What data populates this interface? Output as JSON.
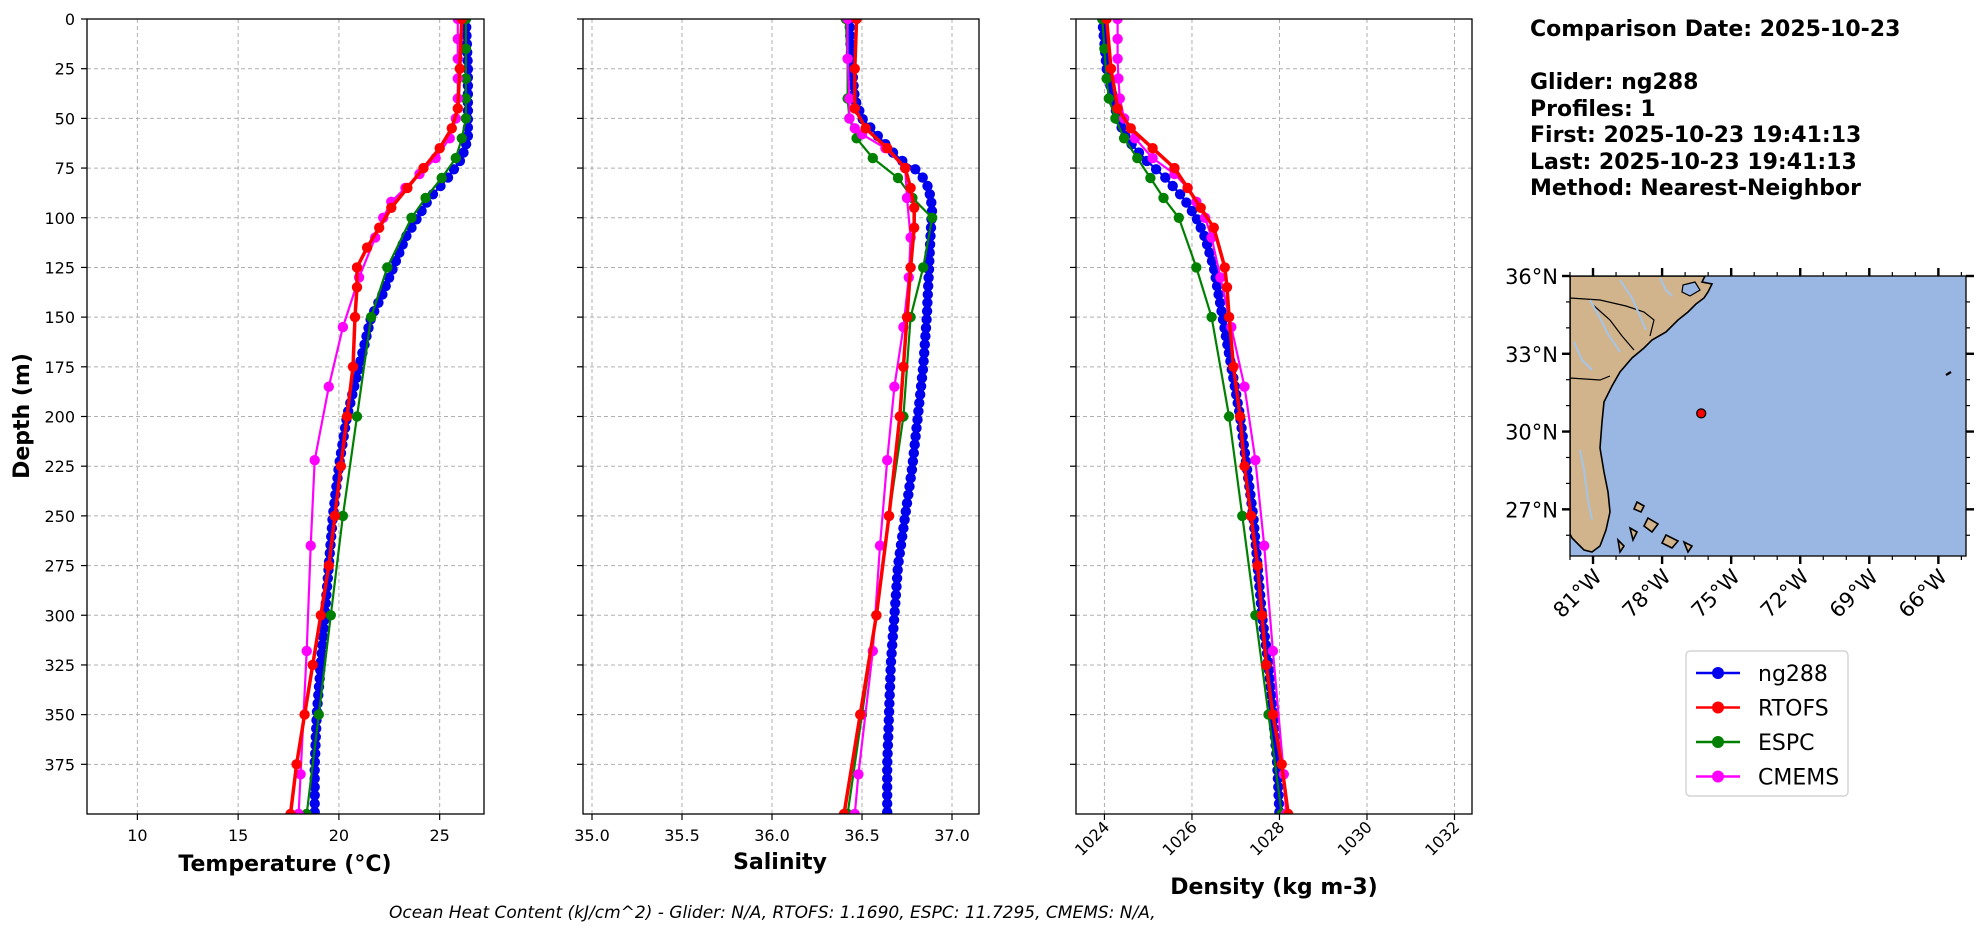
{
  "info": {
    "lines": [
      "Comparison Date: 2025-10-23",
      "",
      "Glider: ng288",
      "Profiles: 1",
      "First: 2025-10-23 19:41:13",
      "Last: 2025-10-23 19:41:13",
      "Method: Nearest-Neighbor"
    ]
  },
  "footer": {
    "text": "Ocean Heat Content (kJ/cm^2) - Glider: N/A,  RTOFS: 1.1690,  ESPC: 11.7295,  CMEMS: N/A,"
  },
  "colors": {
    "ng288": "#0000ee",
    "RTOFS": "#ff0000",
    "ESPC": "#008000",
    "CMEMS": "#ff00ff",
    "land": "#d2b48c",
    "ocean": "#9ab7e3",
    "river": "#a6c4e6"
  },
  "legend": {
    "entries": [
      "ng288",
      "RTOFS",
      "ESPC",
      "CMEMS"
    ]
  },
  "map": {
    "lat_ticks": [
      "36°N",
      "33°N",
      "30°N",
      "27°N"
    ],
    "lon_ticks": [
      "81°W",
      "78°W",
      "75°W",
      "72°W",
      "69°W",
      "66°W"
    ],
    "lat_range": [
      25.2,
      36.0
    ],
    "lon_range": [
      -82.0,
      -64.8
    ],
    "marker": {
      "lon": -76.3,
      "lat": 30.7
    }
  },
  "chart_data": [
    {
      "type": "line",
      "xlabel": "Temperature (°C)",
      "ylabel": "Depth (m)",
      "xlim": [
        7.5,
        27.2
      ],
      "ylim": [
        400,
        0
      ],
      "xticks": [
        10,
        15,
        20,
        25
      ],
      "yticks": [
        0,
        25,
        50,
        75,
        100,
        125,
        150,
        175,
        200,
        225,
        250,
        275,
        300,
        325,
        350,
        375
      ],
      "grid": true,
      "series": [
        {
          "name": "ng288",
          "depth": [
            0,
            25,
            50,
            60,
            70,
            80,
            90,
            100,
            110,
            125,
            140,
            150,
            175,
            200,
            225,
            250,
            275,
            300,
            325,
            350,
            375,
            400
          ],
          "values": [
            26.3,
            26.4,
            26.4,
            26.4,
            26.1,
            25.4,
            24.5,
            23.9,
            23.3,
            22.7,
            22.1,
            21.6,
            21.0,
            20.4,
            20.0,
            19.7,
            19.5,
            19.3,
            19.1,
            18.9,
            18.8,
            18.8
          ]
        },
        {
          "name": "RTOFS",
          "depth": [
            0,
            25,
            45,
            55,
            65,
            75,
            85,
            95,
            105,
            115,
            125,
            135,
            150,
            175,
            200,
            225,
            250,
            275,
            300,
            325,
            350,
            375,
            400
          ],
          "values": [
            26.1,
            26.0,
            25.9,
            25.6,
            25.0,
            24.2,
            23.4,
            22.6,
            22.0,
            21.4,
            20.9,
            20.9,
            20.8,
            20.7,
            20.4,
            20.1,
            19.8,
            19.5,
            19.1,
            18.7,
            18.3,
            17.9,
            17.6
          ]
        },
        {
          "name": "ESPC",
          "depth": [
            0,
            15,
            30,
            40,
            50,
            60,
            70,
            80,
            90,
            100,
            125,
            150,
            200,
            250,
            300,
            350,
            400
          ],
          "values": [
            26.3,
            26.3,
            26.3,
            26.3,
            26.3,
            26.1,
            25.8,
            25.1,
            24.3,
            23.6,
            22.4,
            21.6,
            20.9,
            20.2,
            19.6,
            19.0,
            18.4
          ]
        },
        {
          "name": "CMEMS",
          "depth": [
            0,
            10,
            20,
            30,
            40,
            50,
            60,
            70,
            78,
            85,
            92,
            100,
            110,
            130,
            155,
            185,
            222,
            265,
            318,
            380,
            400
          ],
          "values": [
            25.9,
            25.9,
            25.9,
            25.9,
            25.9,
            25.8,
            25.5,
            24.8,
            24.0,
            23.3,
            22.6,
            22.2,
            21.8,
            21.0,
            20.2,
            19.5,
            18.8,
            18.6,
            18.4,
            18.1,
            18.0
          ]
        }
      ]
    },
    {
      "type": "line",
      "xlabel": "Salinity",
      "ylabel": "",
      "xlim": [
        34.95,
        37.15
      ],
      "ylim": [
        400,
        0
      ],
      "xticks": [
        35.0,
        35.5,
        36.0,
        36.5,
        37.0
      ],
      "grid": true,
      "series": [
        {
          "name": "ng288",
          "depth": [
            0,
            20,
            40,
            50,
            60,
            70,
            77,
            85,
            95,
            110,
            130,
            150,
            175,
            200,
            225,
            250,
            275,
            300,
            325,
            350,
            375,
            400
          ],
          "values": [
            36.43,
            36.44,
            36.46,
            36.5,
            36.6,
            36.7,
            36.82,
            36.87,
            36.89,
            36.88,
            36.87,
            36.86,
            36.84,
            36.81,
            36.78,
            36.74,
            36.7,
            36.68,
            36.66,
            36.65,
            36.64,
            36.64
          ]
        },
        {
          "name": "RTOFS",
          "depth": [
            0,
            25,
            45,
            55,
            65,
            75,
            85,
            95,
            105,
            125,
            150,
            175,
            200,
            250,
            300,
            350,
            400
          ],
          "values": [
            36.47,
            36.46,
            36.46,
            36.52,
            36.64,
            36.74,
            36.77,
            36.79,
            36.79,
            36.77,
            36.75,
            36.73,
            36.71,
            36.65,
            36.58,
            36.49,
            36.4
          ]
        },
        {
          "name": "ESPC",
          "depth": [
            0,
            20,
            40,
            50,
            60,
            70,
            80,
            90,
            100,
            125,
            150,
            200,
            250,
            300,
            350,
            400
          ],
          "values": [
            36.41,
            36.42,
            36.42,
            36.43,
            36.47,
            36.56,
            36.7,
            36.78,
            36.89,
            36.84,
            36.77,
            36.73,
            36.65,
            36.58,
            36.5,
            36.42
          ]
        },
        {
          "name": "CMEMS",
          "depth": [
            0,
            20,
            40,
            50,
            55,
            58,
            65,
            75,
            90,
            110,
            130,
            155,
            185,
            222,
            265,
            318,
            380,
            400
          ],
          "values": [
            36.42,
            36.42,
            36.43,
            36.43,
            36.46,
            36.5,
            36.63,
            36.74,
            36.75,
            36.77,
            36.76,
            36.73,
            36.68,
            36.64,
            36.6,
            36.56,
            36.48,
            36.46
          ]
        }
      ]
    },
    {
      "type": "line",
      "xlabel": "Density (kg m-3)",
      "ylabel": "",
      "xlim": [
        1023.35,
        1032.4
      ],
      "ylim": [
        400,
        0
      ],
      "xticks": [
        1024,
        1026,
        1028,
        1030,
        1032
      ],
      "grid": true,
      "series": [
        {
          "name": "ng288",
          "depth": [
            0,
            25,
            50,
            60,
            70,
            80,
            90,
            100,
            110,
            125,
            150,
            175,
            200,
            225,
            250,
            275,
            300,
            325,
            350,
            375,
            400
          ],
          "values": [
            1023.95,
            1024.05,
            1024.3,
            1024.5,
            1024.9,
            1025.4,
            1025.8,
            1026.1,
            1026.3,
            1026.5,
            1026.7,
            1026.9,
            1027.1,
            1027.25,
            1027.4,
            1027.5,
            1027.6,
            1027.75,
            1027.85,
            1027.95,
            1028.0
          ]
        },
        {
          "name": "RTOFS",
          "depth": [
            0,
            25,
            45,
            55,
            65,
            75,
            85,
            95,
            105,
            125,
            135,
            150,
            175,
            200,
            225,
            250,
            275,
            300,
            325,
            350,
            375,
            400
          ],
          "values": [
            1024.05,
            1024.15,
            1024.3,
            1024.6,
            1025.1,
            1025.6,
            1025.9,
            1026.2,
            1026.5,
            1026.75,
            1026.8,
            1026.85,
            1026.95,
            1027.1,
            1027.2,
            1027.35,
            1027.5,
            1027.6,
            1027.7,
            1027.85,
            1028.05,
            1028.2
          ]
        },
        {
          "name": "ESPC",
          "depth": [
            0,
            15,
            30,
            40,
            50,
            60,
            70,
            80,
            90,
            100,
            125,
            150,
            200,
            250,
            300,
            350,
            400
          ],
          "values": [
            1023.95,
            1024.0,
            1024.05,
            1024.1,
            1024.25,
            1024.45,
            1024.75,
            1025.05,
            1025.35,
            1025.7,
            1026.1,
            1026.45,
            1026.85,
            1027.15,
            1027.45,
            1027.75,
            1028.05
          ]
        },
        {
          "name": "CMEMS",
          "depth": [
            0,
            10,
            20,
            30,
            40,
            50,
            60,
            70,
            78,
            85,
            92,
            100,
            110,
            130,
            155,
            185,
            222,
            265,
            318,
            380,
            400
          ],
          "values": [
            1024.3,
            1024.3,
            1024.3,
            1024.32,
            1024.35,
            1024.45,
            1024.7,
            1025.1,
            1025.6,
            1025.9,
            1026.1,
            1026.3,
            1026.45,
            1026.65,
            1026.9,
            1027.2,
            1027.45,
            1027.65,
            1027.85,
            1028.1,
            1028.15
          ]
        }
      ]
    }
  ]
}
